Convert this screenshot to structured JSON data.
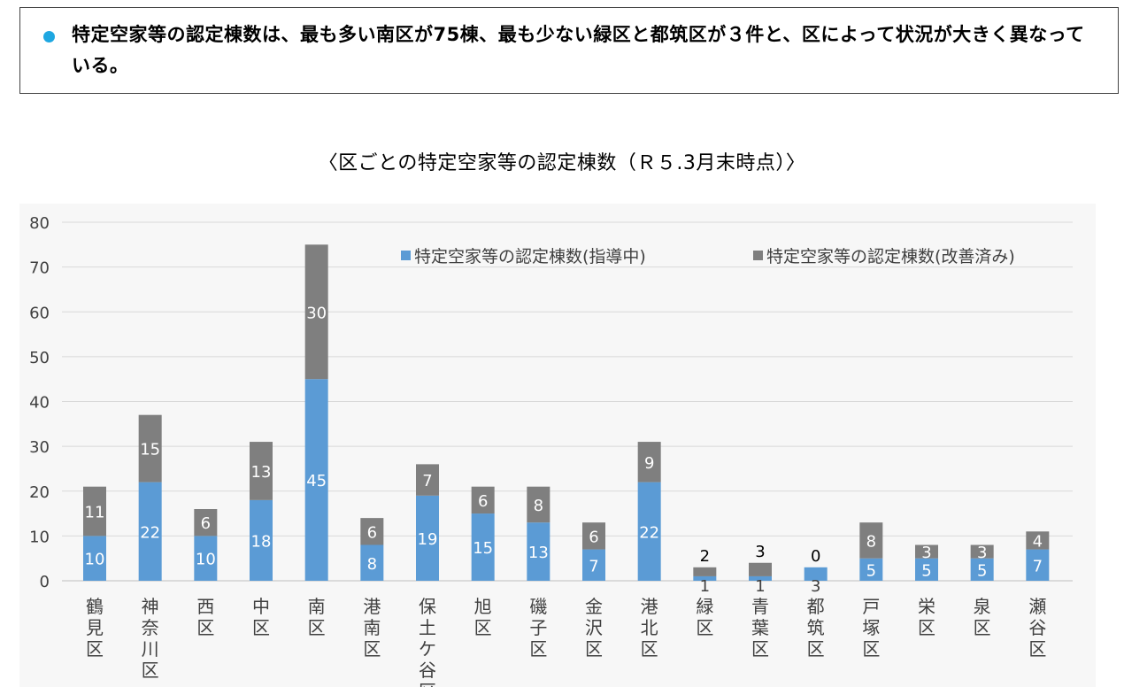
{
  "summary": {
    "text": "特定空家等の認定棟数は、最も多い南区が75棟、最も少ない緑区と都筑区が３件と、区によって状況が大きく異なっている。"
  },
  "chart_data": {
    "type": "bar",
    "stacked": true,
    "title": "〈区ごとの特定空家等の認定棟数（Ｒ５.3月末時点）〉",
    "xlabel": "",
    "ylabel": "",
    "ylim": [
      0,
      80
    ],
    "yticks": [
      0,
      10,
      20,
      30,
      40,
      50,
      60,
      70,
      80
    ],
    "grid": true,
    "legend_position": "top-right",
    "categories": [
      "鶴見区",
      "神奈川区",
      "西区",
      "中区",
      "南区",
      "港南区",
      "保土ケ谷区",
      "旭区",
      "磯子区",
      "金沢区",
      "港北区",
      "緑区",
      "青葉区",
      "都筑区",
      "戸塚区",
      "栄区",
      "泉区",
      "瀬谷区"
    ],
    "series": [
      {
        "name": "特定空家等の認定棟数(指導中)",
        "color": "#5b9bd5",
        "values": [
          10,
          22,
          10,
          18,
          45,
          8,
          19,
          15,
          13,
          7,
          22,
          1,
          1,
          3,
          5,
          5,
          5,
          7
        ]
      },
      {
        "name": "特定空家等の認定棟数(改善済み)",
        "color": "#7f7f7f",
        "values": [
          11,
          15,
          6,
          13,
          30,
          6,
          7,
          6,
          8,
          6,
          9,
          2,
          3,
          0,
          8,
          3,
          3,
          4
        ]
      }
    ]
  }
}
